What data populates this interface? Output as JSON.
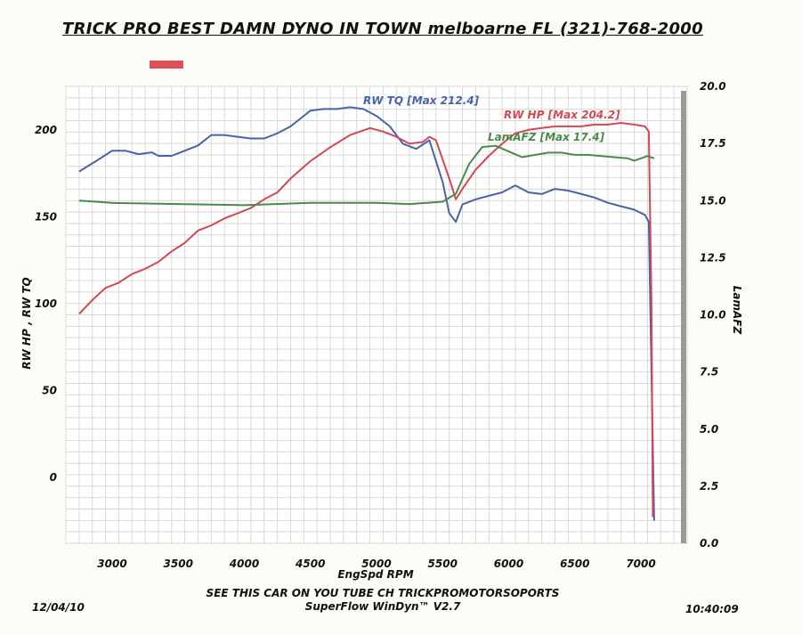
{
  "header": {
    "title": "TRICK PRO BEST DAMN DYNO IN TOWN melboarne FL (321)-768-2000"
  },
  "footer": {
    "date": "12/04/10",
    "time": "10:40:09",
    "line1": "SEE THIS CAR ON YOU TUBE CH TRICKPROMOTORSOPORTS",
    "line2": "SuperFlow WinDyn™ V2.7"
  },
  "chart_data": {
    "type": "line",
    "xlabel": "EngSpd  RPM",
    "ylabel": "RW HP , RW TQ",
    "y2label": "LamAFZ",
    "xlim": [
      2650,
      7350
    ],
    "ylim": [
      -38,
      225
    ],
    "y2lim": [
      0,
      20
    ],
    "x_ticks": [
      3000,
      3500,
      4000,
      4500,
      5000,
      5500,
      6000,
      6500,
      7000
    ],
    "y_ticks": [
      0,
      50,
      100,
      150,
      200
    ],
    "y2_ticks": [
      "0.0",
      "2.5",
      "5.0",
      "7.5",
      "10.0",
      "12.5",
      "15.0",
      "17.5",
      "20.0"
    ],
    "grid": true,
    "series": [
      {
        "name": "RW TQ",
        "label": "RW TQ  [Max   212.4]",
        "color": "#4a63a8",
        "axis": "left",
        "x": [
          2750,
          2900,
          3000,
          3100,
          3200,
          3300,
          3350,
          3450,
          3550,
          3650,
          3750,
          3850,
          3950,
          4050,
          4150,
          4250,
          4350,
          4500,
          4600,
          4700,
          4800,
          4900,
          5000,
          5100,
          5200,
          5300,
          5400,
          5500,
          5550,
          5600,
          5650,
          5750,
          5850,
          5950,
          6050,
          6150,
          6250,
          6350,
          6450,
          6550,
          6650,
          6750,
          6850,
          6950,
          7030,
          7060,
          7080,
          7100
        ],
        "y": [
          176,
          183,
          188,
          188,
          186,
          187,
          185,
          185,
          188,
          191,
          197,
          197,
          196,
          195,
          195,
          198,
          202,
          211,
          212,
          212,
          213,
          212,
          208,
          202,
          192,
          189,
          194,
          170,
          152,
          147,
          157,
          160,
          162,
          164,
          168,
          164,
          163,
          166,
          165,
          163,
          161,
          158,
          156,
          154,
          151,
          147,
          60,
          -25
        ]
      },
      {
        "name": "RW HP",
        "label": "RW HP  [Max   204.2]",
        "color": "#d24854",
        "axis": "left",
        "x": [
          2750,
          2850,
          2950,
          3050,
          3150,
          3250,
          3350,
          3450,
          3550,
          3650,
          3750,
          3850,
          3950,
          4050,
          4150,
          4250,
          4350,
          4500,
          4650,
          4800,
          4950,
          5050,
          5150,
          5250,
          5350,
          5400,
          5450,
          5550,
          5600,
          5650,
          5750,
          5850,
          5950,
          6050,
          6150,
          6250,
          6350,
          6450,
          6550,
          6650,
          6750,
          6850,
          6950,
          7030,
          7060,
          7080,
          7090
        ],
        "y": [
          94,
          102,
          109,
          112,
          117,
          120,
          124,
          130,
          135,
          142,
          145,
          149,
          152,
          155,
          160,
          164,
          172,
          182,
          190,
          197,
          201,
          199,
          196,
          192,
          193,
          196,
          194,
          172,
          160,
          166,
          177,
          185,
          192,
          198,
          200,
          201,
          202,
          202,
          202,
          203,
          203,
          204,
          203,
          202,
          199,
          100,
          -23
        ]
      },
      {
        "name": "LamAFZ",
        "label": "LamAFZ [Max   17.4]",
        "color": "#4a8a4a",
        "axis": "right",
        "x": [
          2750,
          3000,
          3500,
          4000,
          4500,
          5000,
          5250,
          5500,
          5600,
          5700,
          5800,
          5900,
          6000,
          6100,
          6200,
          6300,
          6400,
          6500,
          6600,
          6700,
          6800,
          6900,
          6950,
          7000,
          7050,
          7100
        ],
        "y": [
          15.0,
          14.9,
          14.85,
          14.8,
          14.9,
          14.9,
          14.85,
          14.95,
          15.3,
          16.6,
          17.35,
          17.4,
          17.15,
          16.9,
          17.0,
          17.1,
          17.1,
          17.0,
          17.0,
          16.95,
          16.9,
          16.85,
          16.75,
          16.85,
          16.95,
          16.85
        ]
      }
    ]
  }
}
